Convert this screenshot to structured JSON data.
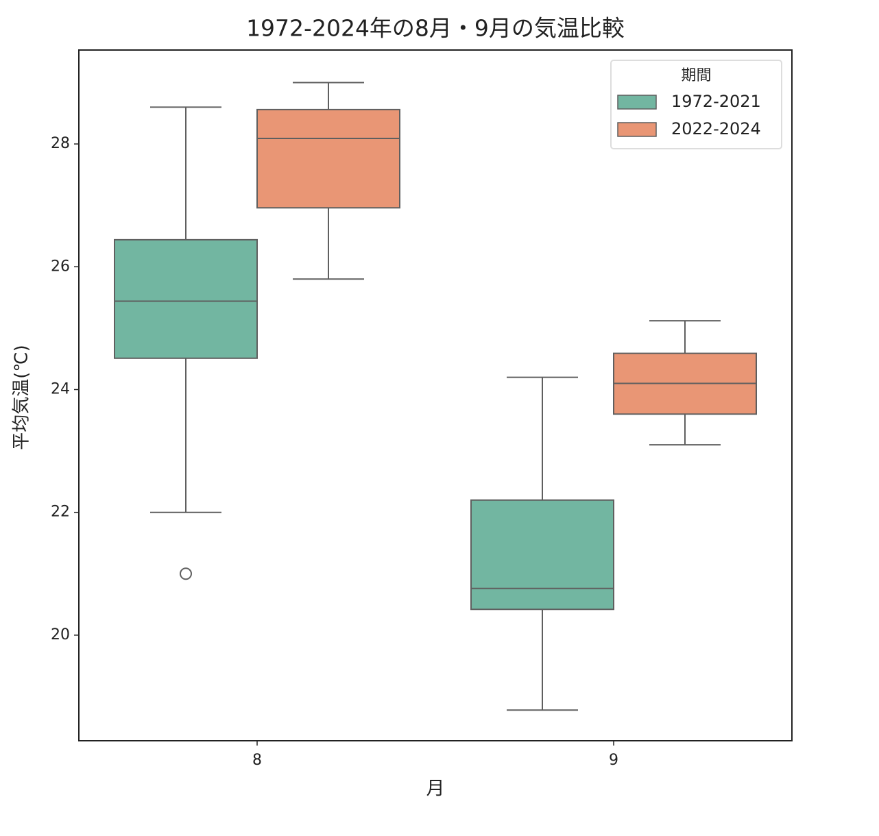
{
  "chart_data": {
    "type": "box",
    "title": "1972-2024年の8月・9月の気温比較",
    "x_label": "月",
    "y_label": "平均気温(℃)",
    "categories": [
      "8",
      "9"
    ],
    "ylim": [
      18.28,
      29.53
    ],
    "yticks": [
      20,
      22,
      24,
      26,
      28
    ],
    "legend_title": "期間",
    "legend_position": "upper right",
    "grid": false,
    "series": [
      {
        "name": "1972-2021",
        "color": "#72b6a1",
        "whisker_low": [
          22.0,
          18.78
        ],
        "q1": [
          24.51,
          20.42
        ],
        "median": [
          25.44,
          20.76
        ],
        "q3": [
          26.44,
          22.2
        ],
        "whisker_high": [
          28.6,
          24.2
        ],
        "outliers": [
          [
            21.0
          ],
          []
        ]
      },
      {
        "name": "2022-2024",
        "color": "#e99675",
        "whisker_low": [
          25.8,
          23.1
        ],
        "q1": [
          26.96,
          23.6
        ],
        "median": [
          28.09,
          24.1
        ],
        "q3": [
          28.56,
          24.59
        ],
        "whisker_high": [
          29.0,
          25.12
        ],
        "outliers": [
          [],
          []
        ]
      }
    ]
  }
}
